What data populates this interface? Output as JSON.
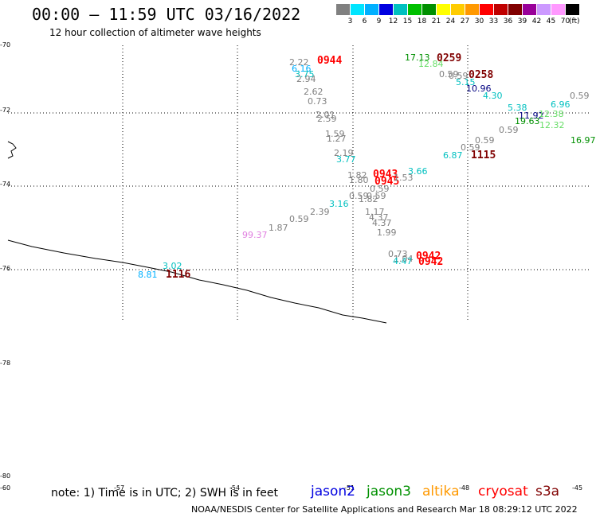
{
  "header": {
    "title": "00:00 – 11:59 UTC 03/16/2022",
    "subtitle": "12 hour collection of altimeter wave heights"
  },
  "legend": {
    "unit": "(ft)",
    "colors": [
      "#808080",
      "#00e5ff",
      "#00b0ff",
      "#0000e0",
      "#00c0c0",
      "#00c000",
      "#009000",
      "#ffff00",
      "#ffcc00",
      "#ff9900",
      "#ff0000",
      "#c00000",
      "#800000",
      "#990099",
      "#cc99ff",
      "#ff99ff",
      "#000000"
    ],
    "labels": [
      "3",
      "6",
      "9",
      "12",
      "15",
      "18",
      "21",
      "24",
      "27",
      "30",
      "33",
      "36",
      "39",
      "42",
      "45",
      "70"
    ]
  },
  "axes": {
    "lat_labels": [
      "-70",
      "-72",
      "-74",
      "-76",
      "-78",
      "-80"
    ],
    "lon_labels": [
      "-60",
      "-57",
      "-54",
      "-51",
      "-48",
      "-45"
    ]
  },
  "points": [
    {
      "text": "2.22",
      "color": "#808080"
    },
    {
      "text": "0944",
      "color": "#ff0000",
      "event": true
    },
    {
      "text": "6.16",
      "color": "#00b0ff"
    },
    {
      "text": "3.75",
      "color": "#00c0c0"
    },
    {
      "text": "2.94",
      "color": "#808080"
    },
    {
      "text": "2.62",
      "color": "#808080"
    },
    {
      "text": "0.73",
      "color": "#808080"
    },
    {
      "text": "2.01",
      "color": "#808080"
    },
    {
      "text": "2.59",
      "color": "#808080"
    },
    {
      "text": "1.59",
      "color": "#808080"
    },
    {
      "text": "1.27",
      "color": "#808080"
    },
    {
      "text": "2.19",
      "color": "#808080"
    },
    {
      "text": "3.77",
      "color": "#00c0c0"
    },
    {
      "text": "1.82",
      "color": "#808080"
    },
    {
      "text": "1.80",
      "color": "#808080"
    },
    {
      "text": "0943",
      "color": "#ff0000",
      "event": true
    },
    {
      "text": "0945",
      "color": "#ff0000",
      "event": true
    },
    {
      "text": "1.53",
      "color": "#808080"
    },
    {
      "text": "3.66",
      "color": "#00c0c0"
    },
    {
      "text": "0.59",
      "color": "#808080"
    },
    {
      "text": "0.59",
      "color": "#808080"
    },
    {
      "text": "0.59",
      "color": "#808080"
    },
    {
      "text": "1.82",
      "color": "#808080"
    },
    {
      "text": "3.16",
      "color": "#00c0c0"
    },
    {
      "text": "2.39",
      "color": "#808080"
    },
    {
      "text": "0.59",
      "color": "#808080"
    },
    {
      "text": "1.87",
      "color": "#808080"
    },
    {
      "text": "1.17",
      "color": "#808080"
    },
    {
      "text": "4.37",
      "color": "#808080"
    },
    {
      "text": "4.37",
      "color": "#808080"
    },
    {
      "text": "1.99",
      "color": "#808080"
    },
    {
      "text": "99.37",
      "color": "#e080e0"
    },
    {
      "text": "0.73",
      "color": "#808080"
    },
    {
      "text": "1.04",
      "color": "#808080"
    },
    {
      "text": "4.47",
      "color": "#00c0c0"
    },
    {
      "text": "0942",
      "color": "#ff0000",
      "event": true
    },
    {
      "text": "0942",
      "color": "#ff0000",
      "event": true
    },
    {
      "text": "3.02",
      "color": "#00c0c0"
    },
    {
      "text": "8.81",
      "color": "#00b0ff"
    },
    {
      "text": "1116",
      "color": "#800000",
      "event": true
    },
    {
      "text": "17.13",
      "color": "#009000"
    },
    {
      "text": "12.84",
      "color": "#66dd66"
    },
    {
      "text": "0259",
      "color": "#800000",
      "event": true
    },
    {
      "text": "0.59",
      "color": "#808080"
    },
    {
      "text": "0.59",
      "color": "#808080"
    },
    {
      "text": "0258",
      "color": "#800000",
      "event": true
    },
    {
      "text": "5.15",
      "color": "#00c0c0"
    },
    {
      "text": "10.96",
      "color": "#000080"
    },
    {
      "text": "4.30",
      "color": "#00c0c0"
    },
    {
      "text": "0.59",
      "color": "#808080"
    },
    {
      "text": "6.96",
      "color": "#00c0c0"
    },
    {
      "text": "5.38",
      "color": "#00c0c0"
    },
    {
      "text": "11.92",
      "color": "#000080"
    },
    {
      "text": "12.38",
      "color": "#66dd66"
    },
    {
      "text": "19.63",
      "color": "#009000"
    },
    {
      "text": "12.32",
      "color": "#66dd66"
    },
    {
      "text": "0.59",
      "color": "#808080"
    },
    {
      "text": "0.59",
      "color": "#808080"
    },
    {
      "text": "16.97",
      "color": "#009000"
    },
    {
      "text": "0.59",
      "color": "#808080"
    },
    {
      "text": "6.87",
      "color": "#00c0c0"
    },
    {
      "text": "1115",
      "color": "#800000",
      "event": true
    }
  ],
  "footer": {
    "note": "note: 1) Time is in UTC; 2) SWH is in feet",
    "satellites": [
      {
        "name": "jason2",
        "color": "#0000e0"
      },
      {
        "name": "jason3",
        "color": "#009000"
      },
      {
        "name": "altika",
        "color": "#ff9900"
      },
      {
        "name": "cryosat",
        "color": "#ff0000"
      },
      {
        "name": "s3a",
        "color": "#800000"
      }
    ],
    "credit": "NOAA/NESDIS Center for Satellite Applications and Research   Mar 18 08:29:12 UTC 2022"
  }
}
